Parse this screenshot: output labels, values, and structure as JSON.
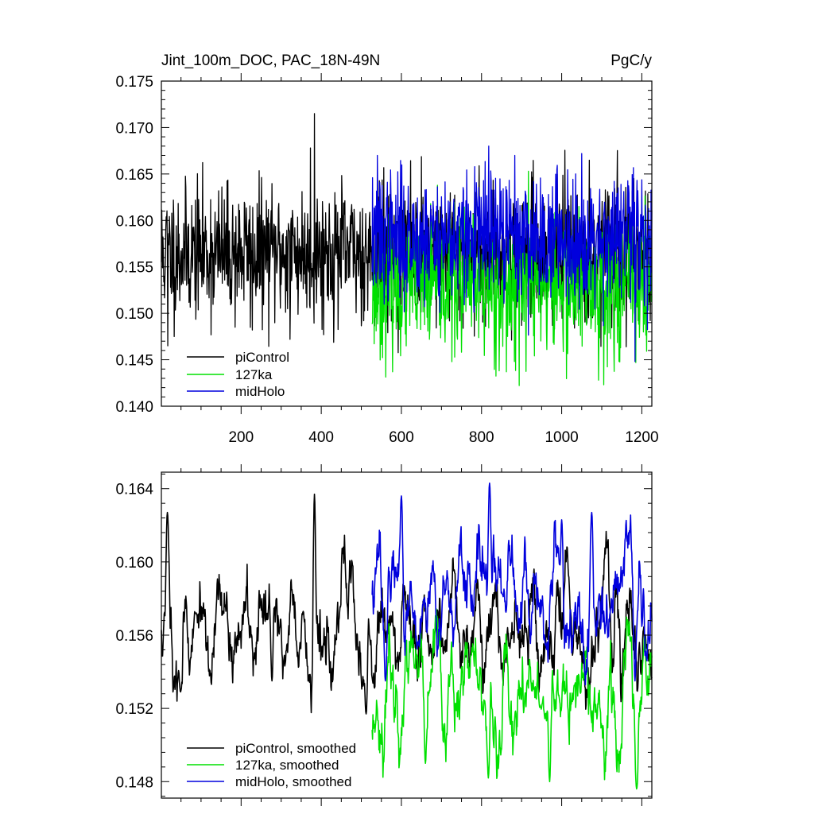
{
  "chart_data": [
    {
      "type": "line",
      "title_left": "Jint_100m_DOC, PAC_18N-49N",
      "title_right": "PgC/y",
      "xlim": [
        1,
        1225
      ],
      "ylim": [
        0.14,
        0.175
      ],
      "x_ticks": [
        200,
        400,
        600,
        800,
        1000,
        1200
      ],
      "y_ticks": [
        "0.140",
        "0.145",
        "0.150",
        "0.155",
        "0.160",
        "0.165",
        "0.170",
        "0.175"
      ],
      "y_tick_values": [
        0.14,
        0.145,
        0.15,
        0.155,
        0.16,
        0.165,
        0.17,
        0.175
      ],
      "legend_position": "bottom-left",
      "series": [
        {
          "name": "piControl",
          "color": "#000000",
          "x_range": [
            1,
            1225
          ],
          "mean": 0.1565,
          "amplitude": 0.0042,
          "noise": "high",
          "seed": 11,
          "extremes": [
            [
              383,
              0.1715
            ],
            [
              373,
              0.1678
            ],
            [
              17,
              0.1465
            ],
            [
              322,
              0.1472
            ],
            [
              228,
              0.1482
            ]
          ]
        },
        {
          "name": "127ka",
          "color": "#00e000",
          "x_range": [
            527,
            1225
          ],
          "mean": 0.1528,
          "amplitude": 0.0042,
          "noise": "high",
          "seed": 23,
          "extremes": [
            [
              1092,
              0.1428
            ],
            [
              917,
              0.1653
            ],
            [
              862,
              0.1437
            ],
            [
              1185,
              0.1447
            ]
          ]
        },
        {
          "name": "midHolo",
          "color": "#0000dd",
          "x_range": [
            527,
            1225
          ],
          "mean": 0.1582,
          "amplitude": 0.004,
          "noise": "high",
          "seed": 37,
          "extremes": [
            [
              540,
              0.167
            ],
            [
              1050,
              0.1672
            ],
            [
              883,
              0.167
            ],
            [
              818,
              0.168
            ],
            [
              1183,
              0.1448
            ]
          ]
        }
      ]
    },
    {
      "type": "line",
      "xlim": [
        1,
        1225
      ],
      "ylim": [
        0.1471,
        0.1649
      ],
      "x_ticks": [
        200,
        400,
        600,
        800,
        1000,
        1200
      ],
      "y_ticks": [
        "0.148",
        "0.152",
        "0.156",
        "0.160",
        "0.164"
      ],
      "y_tick_values": [
        0.148,
        0.152,
        0.156,
        0.16,
        0.164
      ],
      "legend_position": "bottom-left",
      "series": [
        {
          "name": "piControl, smoothed",
          "color": "#000000",
          "x_range": [
            1,
            1225
          ],
          "mean": 0.1562,
          "amplitude": 0.0017,
          "noise": "smooth",
          "seed": 11,
          "extremes": [
            [
              16,
              0.1627
            ],
            [
              383,
              0.1637
            ],
            [
              86,
              0.1572
            ],
            [
              49,
              0.1529
            ],
            [
              277,
              0.1535
            ],
            [
              512,
              0.1517
            ],
            [
              355,
              0.1573
            ]
          ]
        },
        {
          "name": "127ka, smoothed",
          "color": "#00e000",
          "x_range": [
            527,
            1225
          ],
          "mean": 0.1528,
          "amplitude": 0.0018,
          "noise": "smooth",
          "seed": 23,
          "extremes": [
            [
              1187,
              0.1476
            ],
            [
              817,
              0.1482
            ],
            [
              970,
              0.148
            ],
            [
              1207,
              0.156
            ],
            [
              660,
              0.149
            ]
          ]
        },
        {
          "name": "midHolo, smoothed",
          "color": "#0000dd",
          "x_range": [
            527,
            1225
          ],
          "mean": 0.1581,
          "amplitude": 0.0017,
          "noise": "smooth",
          "seed": 37,
          "extremes": [
            [
              820,
              0.1643
            ],
            [
              600,
              0.1636
            ],
            [
              1000,
              0.1623
            ],
            [
              1075,
              0.1627
            ],
            [
              1183,
              0.1535
            ],
            [
              560,
              0.1535
            ]
          ]
        }
      ]
    }
  ]
}
